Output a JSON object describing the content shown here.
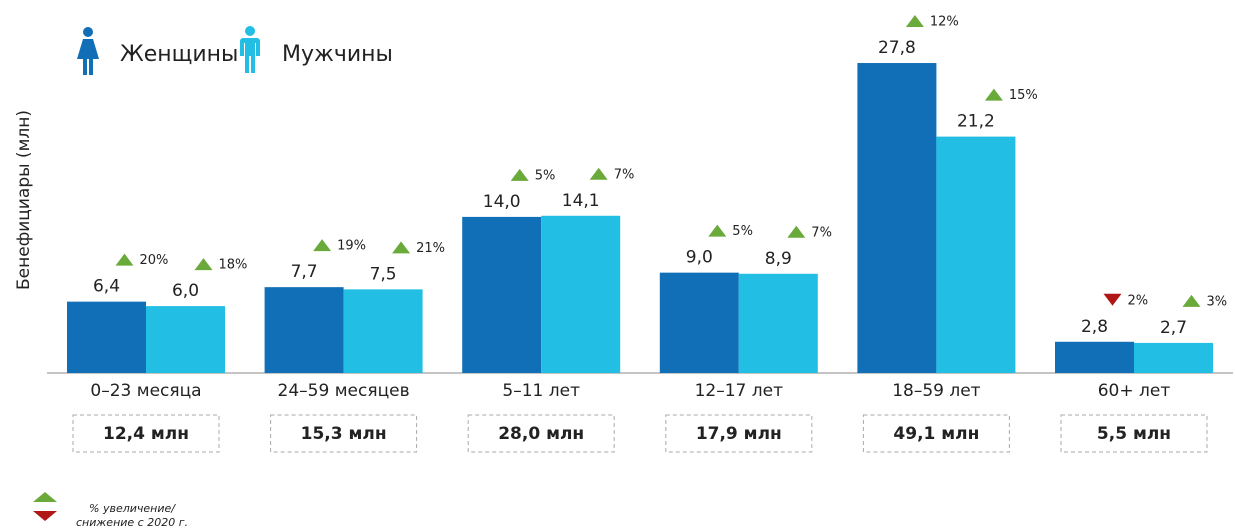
{
  "chart_data": {
    "type": "bar",
    "y_label": "Бенефициары (млн)",
    "categories": [
      "0–23 месяца",
      "24–59 месяцев",
      "5–11 лет",
      "12–17 лет",
      "18–59 лет",
      "60+ лет"
    ],
    "series": [
      {
        "name": "Женщины",
        "color": "#116fb7",
        "values": [
          6.4,
          7.7,
          14.0,
          9.0,
          27.8,
          2.8
        ],
        "value_labels": [
          "6,4",
          "7,7",
          "14,0",
          "9,0",
          "27,8",
          "2,8"
        ],
        "changes": [
          20,
          19,
          5,
          5,
          12,
          2
        ],
        "change_labels": [
          "20%",
          "19%",
          "5%",
          "5%",
          "12%",
          "2%"
        ],
        "change_directions": [
          "up",
          "up",
          "up",
          "up",
          "up",
          "down"
        ]
      },
      {
        "name": "Мужчины",
        "color": "#22bee3",
        "values": [
          6.0,
          7.5,
          14.1,
          8.9,
          21.2,
          2.7
        ],
        "value_labels": [
          "6,0",
          "7,5",
          "14,1",
          "8,9",
          "21,2",
          "2,7"
        ],
        "changes": [
          18,
          21,
          7,
          7,
          15,
          3
        ],
        "change_labels": [
          "18%",
          "21%",
          "7%",
          "7%",
          "15%",
          "3%"
        ],
        "change_directions": [
          "up",
          "up",
          "up",
          "up",
          "up",
          "up"
        ]
      }
    ],
    "totals": [
      12.4,
      15.3,
      28.0,
      17.9,
      49.1,
      5.5
    ],
    "total_labels": [
      "12,4 млн",
      "15,3 млн",
      "28,0 млн",
      "17,9 млн",
      "49,1 млн",
      "5,5 млн"
    ],
    "ylim": [
      0,
      30
    ],
    "up_color": "#6aaa3a",
    "down_color": "#b01818",
    "note": [
      "% увеличение/",
      "снижение с 2020 г."
    ]
  }
}
